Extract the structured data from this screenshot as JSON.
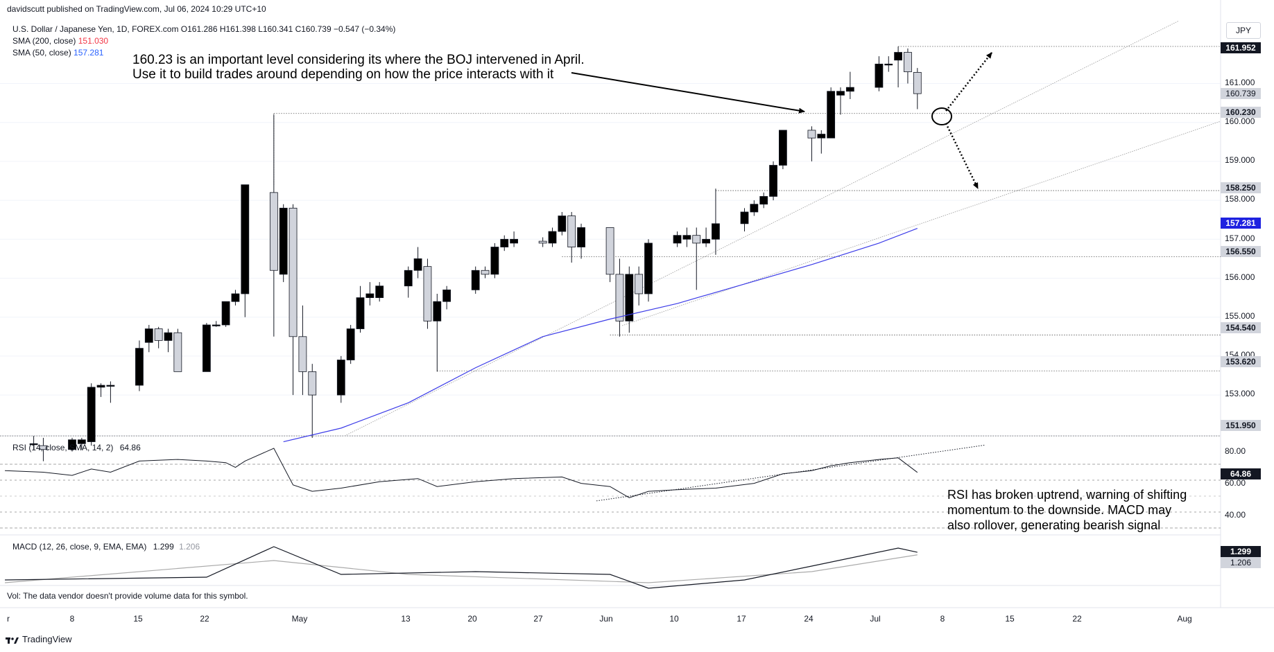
{
  "header": {
    "publisher": "davidscutt published on TradingView.com, Jul 06, 2024 10:29 UTC+10",
    "symbol_line": "U.S. Dollar / Japanese Yen, 1D, FOREX.com  O161.286  H161.398  L160.341  C160.739  −0.547 (−0.34%)",
    "sma200_label": "SMA (200, close)",
    "sma200_value": "151.030",
    "sma50_label": "SMA (50, close)",
    "sma50_value": "157.281",
    "currency": "JPY"
  },
  "annotations": {
    "main_line1": "160.23 is an important level considering its where the BOJ intervened in April.",
    "main_line2": "Use it to build trades around depending on how the price interacts with it",
    "rsi_line1": "RSI has broken uptrend, warning of shifting",
    "rsi_line2": "momentum to the downside. MACD may",
    "rsi_line3": "also rollover, generating bearish signal"
  },
  "rsi_panel": {
    "label": "RSI (14, close, SMA, 14, 2)",
    "value": "64.86",
    "axis": [
      "80.00",
      "60.00",
      "40.00"
    ]
  },
  "macd_panel": {
    "label": "MACD (12, 26, close, 9, EMA, EMA)",
    "macd_value": "1.299",
    "signal_value": "1.206"
  },
  "volume_note": "Vol: The data vendor doesn't provide volume data for this symbol.",
  "footer_brand": "TradingView",
  "price_axis": [
    "161.000",
    "160.000",
    "159.000",
    "158.000",
    "157.000",
    "156.000",
    "155.000",
    "154.000",
    "153.000"
  ],
  "price_tags": {
    "high": "161.952",
    "close": "160.739",
    "level_bo": "160.230",
    "level_158": "158.250",
    "sma50": "157.281",
    "level_1565": "156.550",
    "level_1545": "154.540",
    "level_1536": "153.620",
    "level_1519": "151.950"
  },
  "x_axis": [
    "r",
    "8",
    "15",
    "22",
    "May",
    "13",
    "20",
    "27",
    "Jun",
    "10",
    "17",
    "24",
    "Jul",
    "8",
    "15",
    "22",
    "Aug"
  ],
  "colors": {
    "up": "#000000",
    "down": "#d1d4dc",
    "sma50": "#3b3be8",
    "grid": "#f0f3fa"
  },
  "chart_data": {
    "type": "candlestick",
    "title": "U.S. Dollar / Japanese Yen, 1D, FOREX.com",
    "x_start": "2024-04-01",
    "x_end": "2024-08-05",
    "ylim": [
      151.8,
      162.4
    ],
    "candles": [
      {
        "d": "2024-04-04",
        "o": 151.75,
        "h": 151.95,
        "l": 151.6,
        "c": 151.75
      },
      {
        "d": "2024-04-05",
        "o": 151.7,
        "h": 151.9,
        "l": 151.3,
        "c": 151.6
      },
      {
        "d": "2024-04-08",
        "o": 151.6,
        "h": 151.9,
        "l": 151.55,
        "c": 151.85
      },
      {
        "d": "2024-04-09",
        "o": 151.75,
        "h": 151.9,
        "l": 151.6,
        "c": 151.85
      },
      {
        "d": "2024-04-10",
        "o": 151.8,
        "h": 153.3,
        "l": 151.7,
        "c": 153.2
      },
      {
        "d": "2024-04-11",
        "o": 153.2,
        "h": 153.3,
        "l": 152.95,
        "c": 153.25
      },
      {
        "d": "2024-04-12",
        "o": 153.25,
        "h": 153.35,
        "l": 152.8,
        "c": 153.25
      },
      {
        "d": "2024-04-15",
        "o": 153.25,
        "h": 154.4,
        "l": 153.1,
        "c": 154.2
      },
      {
        "d": "2024-04-16",
        "o": 154.35,
        "h": 154.8,
        "l": 154.1,
        "c": 154.7
      },
      {
        "d": "2024-04-17",
        "o": 154.7,
        "h": 154.75,
        "l": 154.2,
        "c": 154.4
      },
      {
        "d": "2024-04-18",
        "o": 154.4,
        "h": 154.7,
        "l": 154.1,
        "c": 154.6
      },
      {
        "d": "2024-04-19",
        "o": 154.6,
        "h": 154.7,
        "l": 153.6,
        "c": 153.6
      },
      {
        "d": "2024-04-22",
        "o": 153.6,
        "h": 154.85,
        "l": 153.6,
        "c": 154.8
      },
      {
        "d": "2024-04-23",
        "o": 154.8,
        "h": 154.9,
        "l": 154.75,
        "c": 154.8
      },
      {
        "d": "2024-04-24",
        "o": 154.8,
        "h": 155.3,
        "l": 154.75,
        "c": 155.4
      },
      {
        "d": "2024-04-25",
        "o": 155.4,
        "h": 155.7,
        "l": 155.3,
        "c": 155.6
      },
      {
        "d": "2024-04-26",
        "o": 155.6,
        "h": 158.4,
        "l": 155.0,
        "c": 158.4
      },
      {
        "d": "2024-04-29",
        "o": 158.2,
        "h": 160.2,
        "l": 154.5,
        "c": 156.2
      },
      {
        "d": "2024-04-30",
        "o": 156.1,
        "h": 157.9,
        "l": 155.9,
        "c": 157.8
      },
      {
        "d": "2024-05-01",
        "o": 157.8,
        "h": 157.9,
        "l": 153.0,
        "c": 154.5
      },
      {
        "d": "2024-05-02",
        "o": 154.5,
        "h": 155.3,
        "l": 153.0,
        "c": 153.6
      },
      {
        "d": "2024-05-03",
        "o": 153.6,
        "h": 153.8,
        "l": 151.9,
        "c": 153.0
      },
      {
        "d": "2024-05-06",
        "o": 153.0,
        "h": 154.0,
        "l": 152.8,
        "c": 153.9
      },
      {
        "d": "2024-05-07",
        "o": 153.9,
        "h": 154.8,
        "l": 153.8,
        "c": 154.7
      },
      {
        "d": "2024-05-08",
        "o": 154.7,
        "h": 155.8,
        "l": 154.6,
        "c": 155.5
      },
      {
        "d": "2024-05-09",
        "o": 155.5,
        "h": 155.9,
        "l": 155.3,
        "c": 155.6
      },
      {
        "d": "2024-05-10",
        "o": 155.5,
        "h": 155.9,
        "l": 155.4,
        "c": 155.8
      },
      {
        "d": "2024-05-13",
        "o": 155.8,
        "h": 156.3,
        "l": 155.5,
        "c": 156.2
      },
      {
        "d": "2024-05-14",
        "o": 156.2,
        "h": 156.8,
        "l": 156.0,
        "c": 156.5
      },
      {
        "d": "2024-05-15",
        "o": 156.3,
        "h": 156.5,
        "l": 154.7,
        "c": 154.9
      },
      {
        "d": "2024-05-16",
        "o": 154.9,
        "h": 155.6,
        "l": 153.6,
        "c": 155.4
      },
      {
        "d": "2024-05-17",
        "o": 155.4,
        "h": 155.8,
        "l": 155.2,
        "c": 155.7
      },
      {
        "d": "2024-05-20",
        "o": 155.7,
        "h": 156.3,
        "l": 155.6,
        "c": 156.2
      },
      {
        "d": "2024-05-21",
        "o": 156.2,
        "h": 156.3,
        "l": 156.0,
        "c": 156.1
      },
      {
        "d": "2024-05-22",
        "o": 156.1,
        "h": 156.9,
        "l": 156.0,
        "c": 156.8
      },
      {
        "d": "2024-05-23",
        "o": 156.8,
        "h": 157.1,
        "l": 156.7,
        "c": 157.0
      },
      {
        "d": "2024-05-24",
        "o": 156.9,
        "h": 157.2,
        "l": 156.8,
        "c": 157.0
      },
      {
        "d": "2024-05-27",
        "o": 156.95,
        "h": 157.05,
        "l": 156.8,
        "c": 156.9
      },
      {
        "d": "2024-05-28",
        "o": 156.9,
        "h": 157.3,
        "l": 156.8,
        "c": 157.2
      },
      {
        "d": "2024-05-29",
        "o": 157.2,
        "h": 157.7,
        "l": 157.1,
        "c": 157.6
      },
      {
        "d": "2024-05-30",
        "o": 157.6,
        "h": 157.7,
        "l": 156.4,
        "c": 156.8
      },
      {
        "d": "2024-05-31",
        "o": 156.8,
        "h": 157.4,
        "l": 156.5,
        "c": 157.3
      },
      {
        "d": "2024-06-03",
        "o": 157.3,
        "h": 157.3,
        "l": 155.9,
        "c": 156.1
      },
      {
        "d": "2024-06-04",
        "o": 156.1,
        "h": 156.5,
        "l": 154.5,
        "c": 154.9
      },
      {
        "d": "2024-06-05",
        "o": 154.9,
        "h": 156.3,
        "l": 154.6,
        "c": 156.1
      },
      {
        "d": "2024-06-06",
        "o": 156.1,
        "h": 156.3,
        "l": 155.3,
        "c": 155.6
      },
      {
        "d": "2024-06-07",
        "o": 155.6,
        "h": 157.0,
        "l": 155.4,
        "c": 156.9
      },
      {
        "d": "2024-06-10",
        "o": 156.9,
        "h": 157.2,
        "l": 156.8,
        "c": 157.1
      },
      {
        "d": "2024-06-11",
        "o": 157.0,
        "h": 157.3,
        "l": 156.8,
        "c": 157.1
      },
      {
        "d": "2024-06-12",
        "o": 157.1,
        "h": 157.3,
        "l": 155.7,
        "c": 156.9
      },
      {
        "d": "2024-06-13",
        "o": 156.9,
        "h": 157.3,
        "l": 156.8,
        "c": 157.0
      },
      {
        "d": "2024-06-14",
        "o": 157.0,
        "h": 158.3,
        "l": 156.6,
        "c": 157.4
      },
      {
        "d": "2024-06-17",
        "o": 157.4,
        "h": 157.8,
        "l": 157.2,
        "c": 157.7
      },
      {
        "d": "2024-06-18",
        "o": 157.7,
        "h": 158.0,
        "l": 157.6,
        "c": 157.9
      },
      {
        "d": "2024-06-19",
        "o": 157.9,
        "h": 158.2,
        "l": 157.8,
        "c": 158.1
      },
      {
        "d": "2024-06-20",
        "o": 158.1,
        "h": 159.0,
        "l": 158.0,
        "c": 158.9
      },
      {
        "d": "2024-06-21",
        "o": 158.9,
        "h": 159.8,
        "l": 158.8,
        "c": 159.8
      },
      {
        "d": "2024-06-24",
        "o": 159.8,
        "h": 159.9,
        "l": 159.0,
        "c": 159.6
      },
      {
        "d": "2024-06-25",
        "o": 159.6,
        "h": 159.8,
        "l": 159.2,
        "c": 159.7
      },
      {
        "d": "2024-06-26",
        "o": 159.6,
        "h": 160.9,
        "l": 159.6,
        "c": 160.8
      },
      {
        "d": "2024-06-27",
        "o": 160.7,
        "h": 160.9,
        "l": 160.2,
        "c": 160.8
      },
      {
        "d": "2024-06-28",
        "o": 160.8,
        "h": 161.3,
        "l": 160.6,
        "c": 160.9
      },
      {
        "d": "2024-07-01",
        "o": 160.9,
        "h": 161.7,
        "l": 160.8,
        "c": 161.5
      },
      {
        "d": "2024-07-02",
        "o": 161.5,
        "h": 161.7,
        "l": 161.3,
        "c": 161.5
      },
      {
        "d": "2024-07-03",
        "o": 161.6,
        "h": 161.95,
        "l": 160.9,
        "c": 161.8
      },
      {
        "d": "2024-07-04",
        "o": 161.8,
        "h": 161.9,
        "l": 161.0,
        "c": 161.3
      },
      {
        "d": "2024-07-05",
        "o": 161.286,
        "h": 161.398,
        "l": 160.341,
        "c": 160.739
      }
    ],
    "levels": [
      161.952,
      160.23,
      158.25,
      156.55,
      154.54,
      153.62,
      151.95
    ],
    "sma50": [
      [
        30,
        151.1
      ],
      [
        45,
        152.5
      ],
      [
        60,
        154.5
      ],
      [
        70,
        155.0
      ],
      [
        75,
        155.3
      ],
      [
        85,
        156.2
      ],
      [
        95,
        157.0
      ],
      [
        97,
        157.3
      ]
    ],
    "rsi_levels": [
      70,
      60,
      50,
      40,
      30
    ],
    "rsi_last": 64.86,
    "macd_last": 1.299,
    "signal_last": 1.206
  }
}
